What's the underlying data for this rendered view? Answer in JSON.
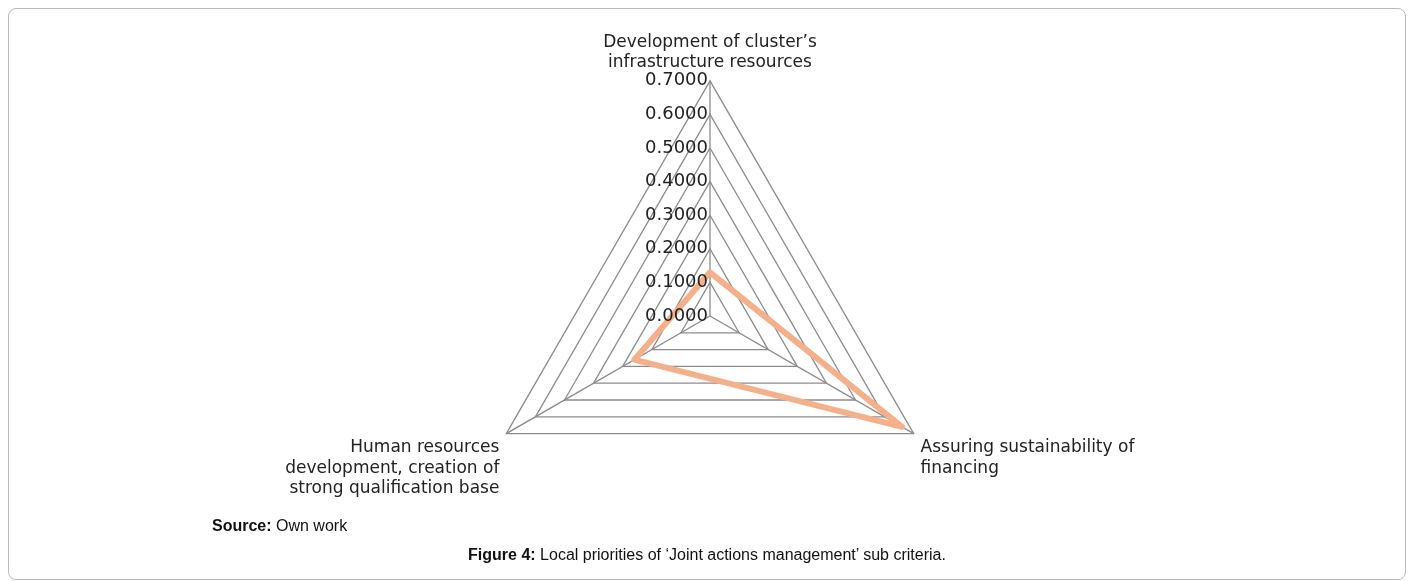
{
  "chart_data": {
    "type": "radar",
    "categories": [
      "Development of cluster’s infrastructure resources",
      "Assuring sustainability of financing",
      "Human resources development, creation of strong qualification base"
    ],
    "series": [
      {
        "color": "#f4b08a",
        "values": [
          0.13,
          0.66,
          0.26
        ]
      }
    ],
    "ylim": [
      0,
      0.7
    ],
    "yticks": [
      {
        "value": 0,
        "label": "0.0000"
      },
      {
        "value": 0.1,
        "label": "0.1000"
      },
      {
        "value": 0.2,
        "label": "0.2000"
      },
      {
        "value": 0.3,
        "label": "0.3000"
      },
      {
        "value": 0.4,
        "label": "0.4000"
      },
      {
        "value": 0.5,
        "label": "0.5000"
      },
      {
        "value": 0.6,
        "label": "0.6000"
      },
      {
        "value": 0.7,
        "label": "0.7000"
      }
    ],
    "grid": true,
    "legend": false,
    "marker": "none",
    "annotations": [
      "Source: Own work",
      "Figure 4: Local priorities of ‘Joint actions management’ sub criteria."
    ]
  }
}
